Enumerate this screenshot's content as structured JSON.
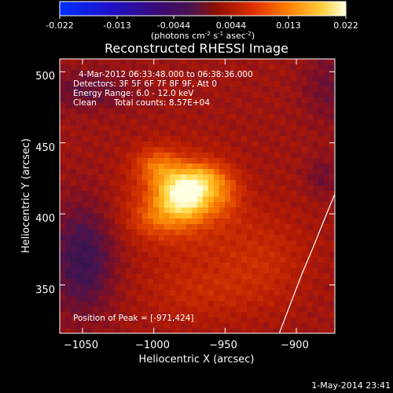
{
  "colorbar": {
    "ticks": [
      "-0.022",
      "-0.013",
      "-0.0044",
      "0.0044",
      "0.013",
      "0.022"
    ],
    "units": "(photons cm",
    "units_exp1": "-2",
    "units_mid": " s",
    "units_exp2": "-1",
    "units_end": " asec",
    "units_exp3": "-2",
    "units_close": ")"
  },
  "annotations": {
    "time_range": "4-Mar-2012 06:33:48.000 to 06:38:36.000",
    "detectors": "Detectors: 3F 5F 6F 7F 8F 9F, Att 0",
    "energy": "Energy Range: 6.0 - 12.0 keV",
    "clean_label": "Clean",
    "counts": "Total counts: 8.57E+04",
    "peak": "Position of Peak = [-971,424]"
  },
  "footer": {
    "date": "1-May-2014 23:41"
  },
  "chart_data": {
    "type": "heatmap",
    "title": "Reconstructed RHESSI Image",
    "xlabel": "Heliocentric X (arcsec)",
    "ylabel": "Heliocentric Y (arcsec)",
    "xlim": [
      -1066,
      -873
    ],
    "ylim": [
      316,
      509
    ],
    "xticks": [
      -1050,
      -1000,
      -950,
      -900
    ],
    "xtick_labels": [
      "−1050",
      "−1000",
      "−950",
      "−900"
    ],
    "yticks": [
      350,
      400,
      450,
      500
    ],
    "ytick_labels": [
      "350",
      "400",
      "450",
      "500"
    ],
    "colormap": "hot-purple",
    "peak_position": [
      -971,
      424
    ],
    "limb_curve": {
      "x": [
        -912,
        -904,
        -896,
        -888,
        -880,
        -873
      ],
      "y": [
        316,
        337,
        358,
        377,
        397,
        414
      ]
    }
  }
}
